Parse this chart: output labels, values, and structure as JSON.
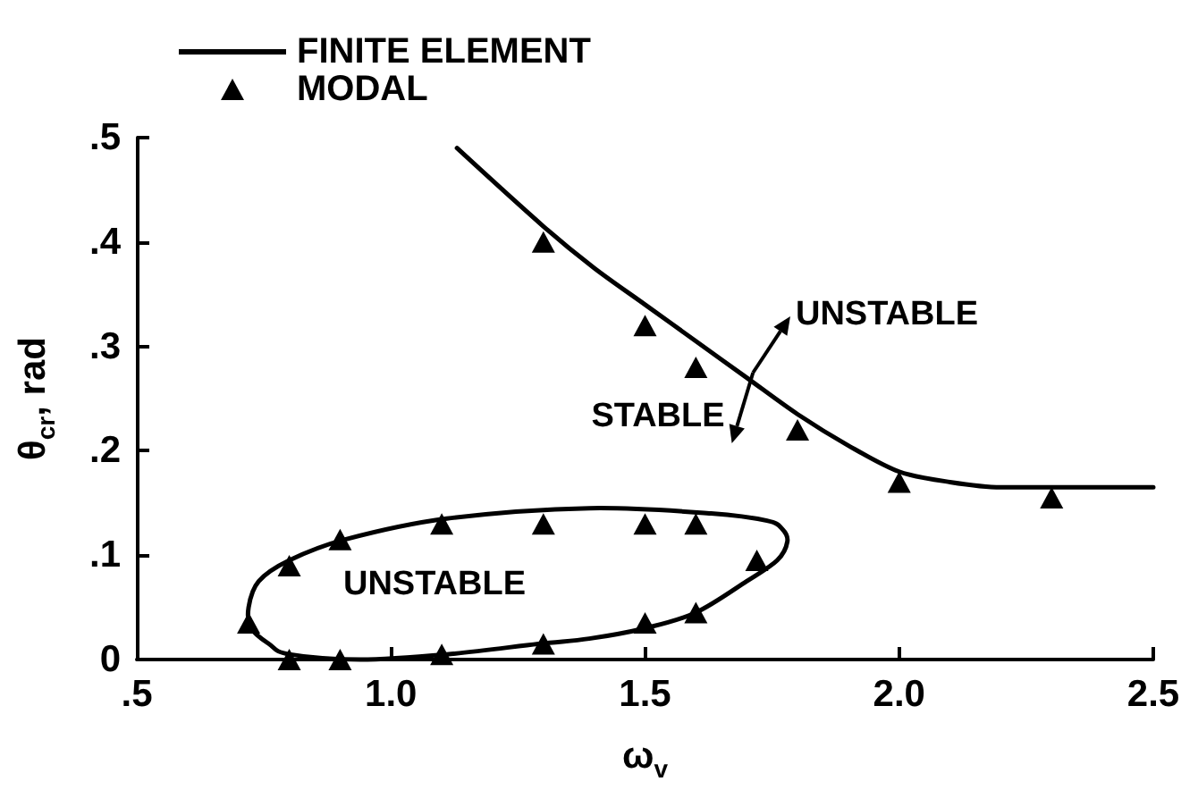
{
  "chart_data": {
    "type": "line",
    "xlabel": "ω$_{v}$",
    "ylabel": "θ$_{cr}$, rad",
    "xlim": [
      0.5,
      2.5
    ],
    "xticks": [
      {
        "value": 0.5,
        "label": ".5"
      },
      {
        "value": 1,
        "label": "1.0"
      },
      {
        "value": 1.5,
        "label": "1.5"
      },
      {
        "value": 2,
        "label": "2.0"
      },
      {
        "value": 2.5,
        "label": "2.5"
      }
    ],
    "ylim": [
      0,
      0.5
    ],
    "yticks": [
      0,
      {
        "value": 0.1,
        "label": ".1"
      },
      {
        "value": 0.2,
        "label": ".2"
      },
      {
        "value": 0.3,
        "label": ".3"
      },
      {
        "value": 0.4,
        "label": ".4"
      },
      {
        "value": 0.5,
        "label": ".5"
      }
    ],
    "grid": false,
    "legend": "top left",
    "series": [
      {
        "name": "FINITE ELEMENT",
        "marker": "none",
        "color": "#000000",
        "x": [
          1.13,
          1.3,
          1.4,
          1.5,
          1.6,
          1.7,
          1.8,
          1.9,
          2.0,
          2.1,
          2.2,
          2.5
        ],
        "values": [
          0.49,
          0.415,
          0.375,
          0.34,
          0.305,
          0.27,
          0.235,
          0.205,
          0.18,
          0.17,
          0.165,
          0.165
        ]
      },
      {
        "name": "MODAL",
        "type": "scatter",
        "marker": "triangle",
        "color": "#000000",
        "x": [
          1.3,
          1.5,
          1.6,
          1.8,
          2.0,
          2.3,
          0.72,
          0.8,
          0.9,
          1.1,
          1.3,
          1.5,
          1.6,
          1.72,
          1.6,
          1.5,
          1.3,
          1.1,
          0.9,
          0.8
        ],
        "values": [
          0.4,
          0.32,
          0.28,
          0.22,
          0.17,
          0.155,
          0.035,
          0.09,
          0.115,
          0.13,
          0.13,
          0.13,
          0.13,
          0.095,
          0.045,
          0.035,
          0.015,
          0.005,
          0,
          0
        ]
      }
    ],
    "annotations": [
      "UNSTABLE",
      "STABLE",
      "UNSTABLE"
    ]
  }
}
